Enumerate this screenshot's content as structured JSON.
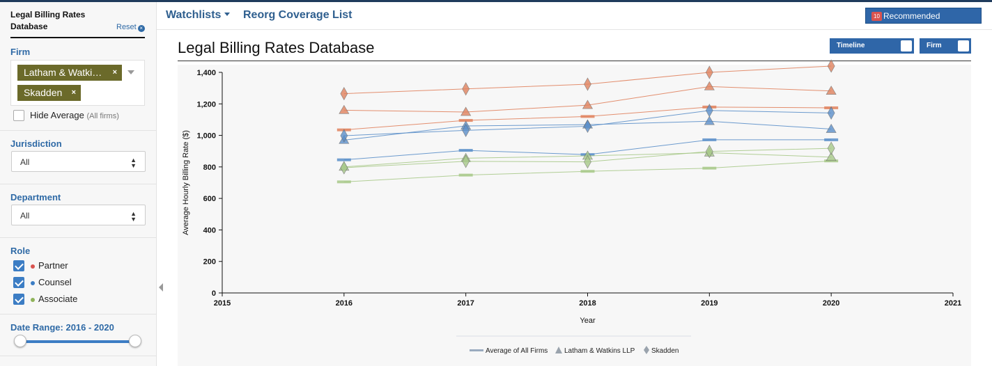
{
  "sidebar": {
    "title": "Legal Billing Rates Database",
    "reset_label": "Reset",
    "firm_label": "Firm",
    "firm_tags": [
      "Latham & Watki…",
      "Skadden"
    ],
    "hide_average_label": "Hide Average",
    "hide_average_note": "(All firms)",
    "jurisdiction_label": "Jurisdiction",
    "jurisdiction_value": "All",
    "department_label": "Department",
    "department_value": "All",
    "role_label": "Role",
    "roles": [
      {
        "label": "Partner",
        "color": "#d9534f",
        "checked": true
      },
      {
        "label": "Counsel",
        "color": "#3c7dc4",
        "checked": true
      },
      {
        "label": "Associate",
        "color": "#8fb35a",
        "checked": true
      }
    ],
    "date_range_label": "Date Range: 2016 - 2020",
    "date_range": [
      2016,
      2020
    ]
  },
  "nav": {
    "watchlists": "Watchlists",
    "reorg": "Reorg Coverage List",
    "recommended_count": "10",
    "recommended_label": "Recommended Companies"
  },
  "page": {
    "title": "Legal Billing Rates Database",
    "toggle_timeline": "Timeline",
    "toggle_firm": "Firm"
  },
  "chart_data": {
    "type": "line",
    "xlabel": "Year",
    "ylabel": "Average Hourly Billing Rate ($)",
    "xlim": [
      2015,
      2021
    ],
    "ylim": [
      0,
      1400
    ],
    "x_ticks": [
      2015,
      2016,
      2017,
      2018,
      2019,
      2020,
      2021
    ],
    "y_ticks": [
      0,
      200,
      400,
      600,
      800,
      1000,
      1200,
      1400
    ],
    "y_tick_labels": [
      "0",
      "200",
      "400",
      "600",
      "800",
      "1,000",
      "1,200",
      "1,400"
    ],
    "x": [
      2016,
      2017,
      2018,
      2019,
      2020
    ],
    "legend": [
      "Average of All Firms",
      "Latham & Watkins LLP",
      "Skadden"
    ],
    "legend_position": "bottom",
    "colors": {
      "Partner": "#e0825e",
      "Counsel": "#5b8fc9",
      "Associate": "#a8c98a"
    },
    "series": [
      {
        "name": "Average of All Firms",
        "role": "Partner",
        "marker": "bar",
        "values": [
          1035,
          1095,
          1120,
          1180,
          1175
        ]
      },
      {
        "name": "Average of All Firms",
        "role": "Counsel",
        "marker": "bar",
        "values": [
          845,
          905,
          878,
          972,
          972
        ]
      },
      {
        "name": "Average of All Firms",
        "role": "Associate",
        "marker": "bar",
        "values": [
          705,
          748,
          772,
          792,
          838
        ]
      },
      {
        "name": "Latham & Watkins LLP",
        "role": "Partner",
        "marker": "triangle",
        "values": [
          1160,
          1148,
          1192,
          1310,
          1282
        ]
      },
      {
        "name": "Latham & Watkins LLP",
        "role": "Counsel",
        "marker": "triangle",
        "values": [
          970,
          1060,
          1068,
          1090,
          1040
        ]
      },
      {
        "name": "Latham & Watkins LLP",
        "role": "Associate",
        "marker": "triangle",
        "values": [
          800,
          855,
          870,
          890,
          862
        ]
      },
      {
        "name": "Skadden",
        "role": "Partner",
        "marker": "diamond",
        "values": [
          1265,
          1295,
          1325,
          1400,
          1440
        ]
      },
      {
        "name": "Skadden",
        "role": "Counsel",
        "marker": "diamond",
        "values": [
          998,
          1032,
          1058,
          1158,
          1142
        ]
      },
      {
        "name": "Skadden",
        "role": "Associate",
        "marker": "diamond",
        "values": [
          795,
          835,
          832,
          898,
          918
        ]
      }
    ]
  }
}
